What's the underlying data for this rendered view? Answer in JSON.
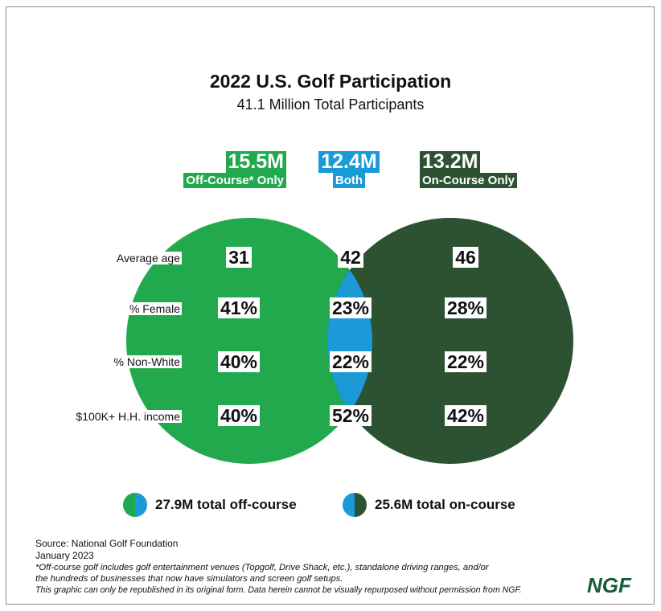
{
  "title": "2022 U.S. Golf Participation",
  "subtitle": "41.1 Million Total Participants",
  "colors": {
    "off_course": "#22a94d",
    "both": "#1a9ad7",
    "on_course": "#2c5232",
    "logo": "#1b5c36"
  },
  "groups": [
    {
      "value": "15.5M",
      "label": "Off-Course* Only"
    },
    {
      "value": "12.4M",
      "label": "Both"
    },
    {
      "value": "13.2M",
      "label": "On-Course Only"
    }
  ],
  "rows": [
    {
      "label": "Average age",
      "values": [
        "31",
        "42",
        "46"
      ]
    },
    {
      "label": "% Female",
      "values": [
        "41%",
        "23%",
        "28%"
      ]
    },
    {
      "label": "% Non-White",
      "values": [
        "40%",
        "22%",
        "22%"
      ]
    },
    {
      "label": "$100K+ H.H. income",
      "values": [
        "40%",
        "52%",
        "42%"
      ]
    }
  ],
  "legend": [
    {
      "text": "27.9M total off-course",
      "icon": "half-green-half-blue-circle-icon"
    },
    {
      "text": "25.6M total on-course",
      "icon": "half-blue-half-darkgreen-circle-icon"
    }
  ],
  "footer": {
    "source": "Source: National Golf Foundation",
    "date": "January 2023",
    "note1": "*Off-course golf includes golf entertainment venues (Topgolf, Drive Shack, etc.), standalone driving ranges, and/or",
    "note2": "the hundreds of businesses that now have simulators and screen golf setups.",
    "note3": "This graphic can only be republished in its original form. Data herein cannot be visually repurposed without permission from NGF."
  },
  "logo": "NGF"
}
